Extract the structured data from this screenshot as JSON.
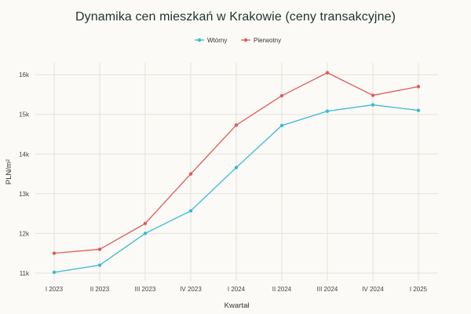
{
  "chart_data": {
    "type": "line",
    "title": "Dynamika cen mieszkań w Krakowie (ceny transakcyjne)",
    "xlabel": "Kwartał",
    "ylabel": "PLN/m²",
    "categories": [
      "I 2023",
      "II 2023",
      "III 2023",
      "IV 2023",
      "I 2024",
      "II 2024",
      "III 2024",
      "IV 2024",
      "I 2025"
    ],
    "ylim": [
      10.8,
      16.3
    ],
    "yticks": [
      11,
      12,
      13,
      14,
      15,
      16
    ],
    "ytick_labels": [
      "11k",
      "12k",
      "13k",
      "14k",
      "15k",
      "16k"
    ],
    "grid": true,
    "legend_position": "top-center",
    "series": [
      {
        "name": "Wtórny",
        "color": "#3bb8d6",
        "values": [
          11.02,
          11.2,
          12.0,
          12.57,
          13.66,
          14.72,
          15.08,
          15.24,
          15.1
        ]
      },
      {
        "name": "Pierwotny",
        "color": "#e05a5e",
        "values": [
          11.5,
          11.6,
          12.25,
          13.5,
          14.73,
          15.47,
          16.05,
          15.48,
          15.7
        ]
      }
    ]
  }
}
